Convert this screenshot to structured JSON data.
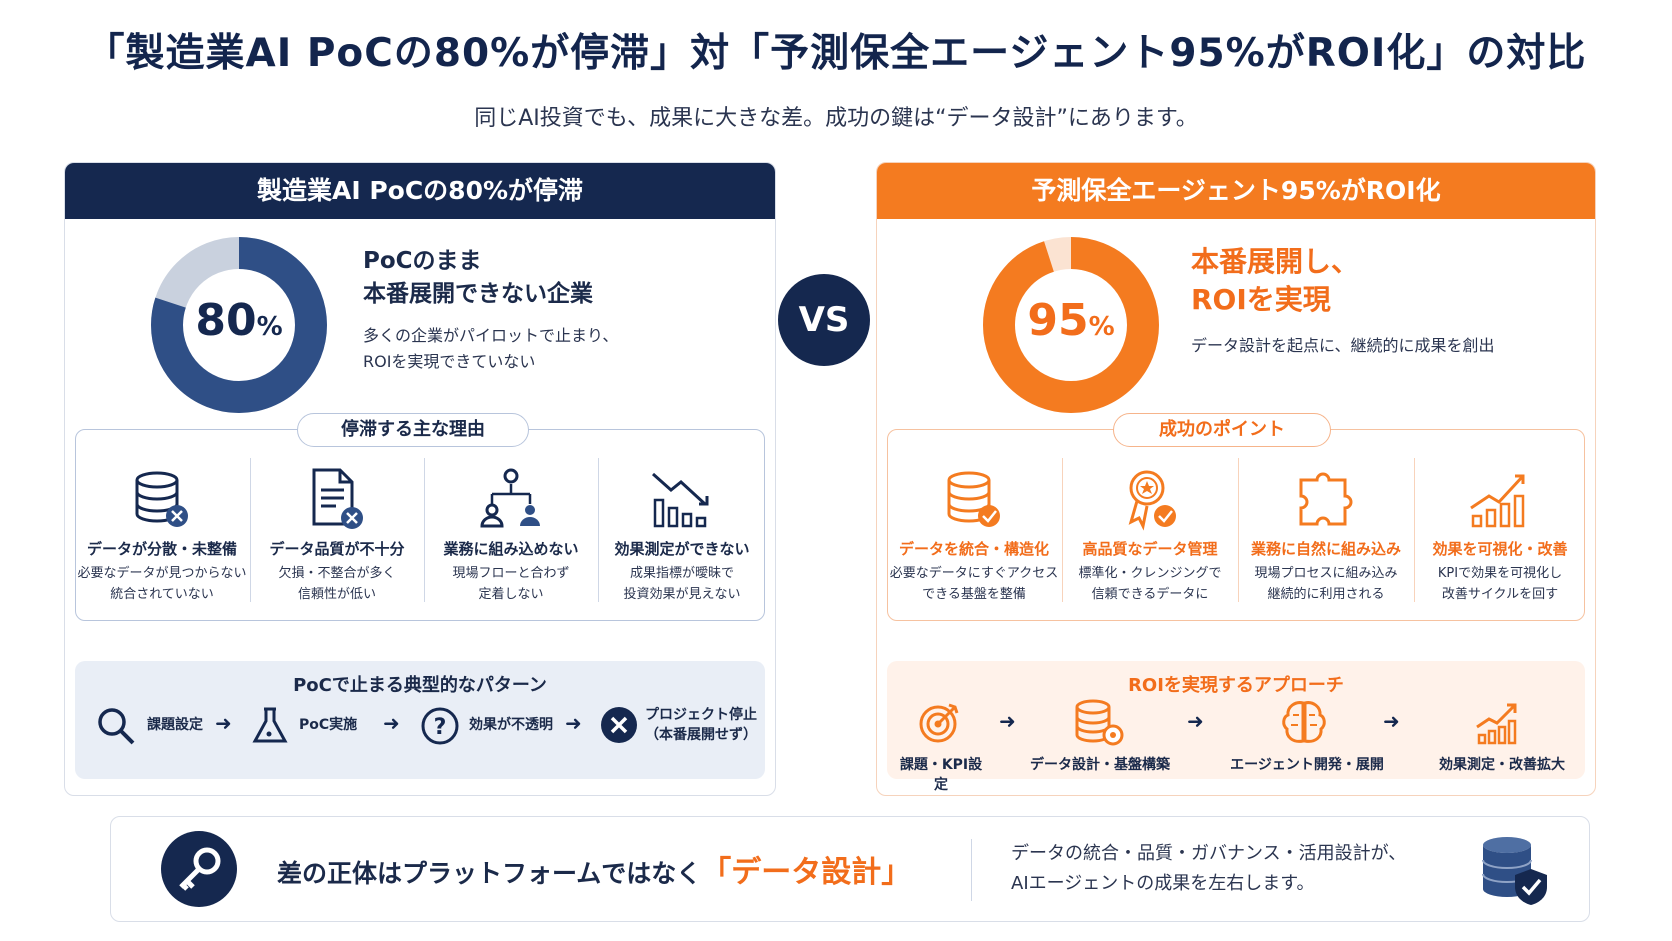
{
  "title": "「製造業AI PoCの80%が停滞」対「予測保全エージェント95%がROI化」の対比",
  "subtitle": "同じAI投資でも、成果に大きな差。成功の鍵は“データ設計”にあります。",
  "colors": {
    "navy": "#15284f",
    "navy_mid": "#2f4f86",
    "light_gray_blue": "#c9d1de",
    "orange": "#f47b20",
    "light_orange": "#fbe3d2"
  },
  "left": {
    "header": "製造業AI PoCの80%が停滞",
    "donut": {
      "percent_value": 80,
      "number": "80",
      "unit": "%"
    },
    "headline": "PoCのまま\n本番展開できない企業",
    "description": "多くの企業がパイロットで止まり、\nROIを実現できていない",
    "reasons_title": "停滞する主な理由",
    "reasons": [
      {
        "icon": "database-x-icon",
        "title": "データが分散・未整備",
        "desc": "必要なデータが見つからない\n統合されていない"
      },
      {
        "icon": "document-x-icon",
        "title": "データ品質が不十分",
        "desc": "欠損・不整合が多く\n信頼性が低い"
      },
      {
        "icon": "org-chart-icon",
        "title": "業務に組み込めない",
        "desc": "現場フローと合わず\n定着しない"
      },
      {
        "icon": "declining-chart-icon",
        "title": "効果測定ができない",
        "desc": "成果指標が曖昧で\n投資効果が見えない"
      }
    ],
    "pattern_title": "PoCで止まる典型的なパターン",
    "pattern_steps": [
      {
        "icon": "magnifier-icon",
        "label": "課題設定"
      },
      {
        "icon": "flask-icon",
        "label": "PoC実施"
      },
      {
        "icon": "question-icon",
        "label": "効果が不透明"
      },
      {
        "icon": "x-circle-icon",
        "label": "プロジェクト停止\n（本番展開せず）"
      }
    ]
  },
  "vs_label": "VS",
  "right": {
    "header": "予測保全エージェント95%がROI化",
    "donut": {
      "percent_value": 95,
      "number": "95",
      "unit": "%"
    },
    "headline": "本番展開し、\nROIを実現",
    "description": "データ設計を起点に、継続的に成果を創出",
    "points_title": "成功のポイント",
    "points": [
      {
        "icon": "database-check-icon",
        "title": "データを統合・構造化",
        "desc": "必要なデータにすぐアクセス\nできる基盤を整備"
      },
      {
        "icon": "award-badge-icon",
        "title": "高品質なデータ管理",
        "desc": "標準化・クレンジングで\n信頼できるデータに"
      },
      {
        "icon": "puzzle-icon",
        "title": "業務に自然に組み込み",
        "desc": "現場プロセスに組み込み\n継続的に利用される"
      },
      {
        "icon": "rising-chart-icon",
        "title": "効果を可視化・改善",
        "desc": "KPIで効果を可視化し\n改善サイクルを回す"
      }
    ],
    "approach_title": "ROIを実現するアプローチ",
    "approach_steps": [
      {
        "icon": "target-icon",
        "label": "課題・KPI設定"
      },
      {
        "icon": "database-gear-icon",
        "label": "データ設計・基盤構築"
      },
      {
        "icon": "brain-icon",
        "label": "エージェント開発・展開"
      },
      {
        "icon": "growth-chart-icon",
        "label": "効果測定・改善拡大"
      }
    ]
  },
  "footer": {
    "key_icon": "key-icon",
    "main_prefix": "差の正体はプラットフォームではなく",
    "main_accent": "「データ設計」",
    "description": "データの統合・品質・ガバナンス・活用設計が、\nAIエージェントの成果を左右します。",
    "shield_icon": "database-shield-icon"
  }
}
